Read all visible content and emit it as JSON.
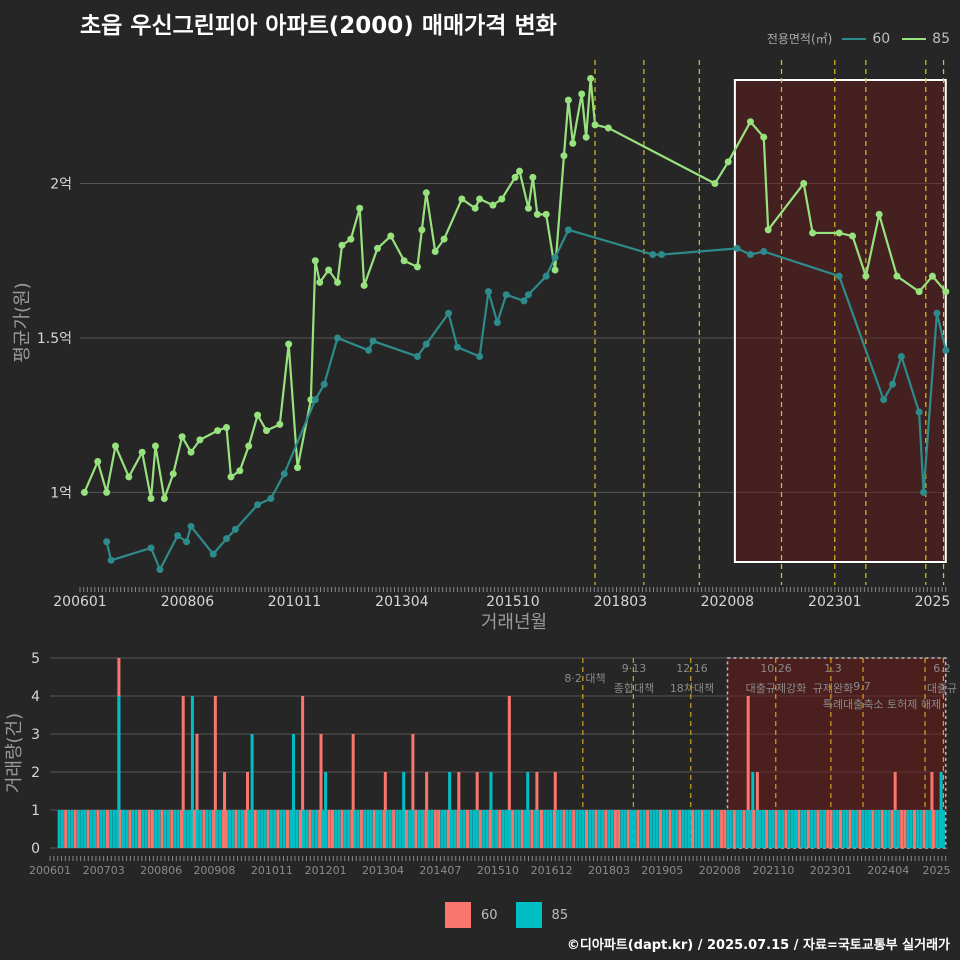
{
  "title": "초읍 우신그린피아 아파트(2000) 매매가격 변화",
  "legend": {
    "title": "전용면적(㎡)",
    "items": [
      {
        "label": "60",
        "color": "#2e8b8b"
      },
      {
        "label": "85",
        "color": "#98e27e"
      }
    ]
  },
  "volume_legend": [
    {
      "label": "60",
      "color": "#f8766d"
    },
    {
      "label": "85",
      "color": "#00bfc4"
    }
  ],
  "credit": "©디아파트(dapt.kr) / 2025.07.15 / 자료=국토교통부 실거래가",
  "chart_data": [
    {
      "type": "line",
      "xlabel": "거래년월",
      "ylabel": "평균가(원)",
      "x_ticks": [
        "200601",
        "200806",
        "201011",
        "201304",
        "201510",
        "201803",
        "202008",
        "202301",
        "2025"
      ],
      "y_ticks": [
        {
          "label": "1억",
          "value": 1.0
        },
        {
          "label": "1.5억",
          "value": 1.5
        },
        {
          "label": "2억",
          "value": 2.0
        }
      ],
      "ylim": [
        0.7,
        2.4
      ],
      "xlim": [
        2006.0,
        2025.55
      ],
      "grid": true,
      "highlight_range": [
        2020.75,
        2025.5
      ],
      "policy_lines": [
        2017.6,
        2018.7,
        2019.95,
        2021.8,
        2023.0,
        2023.7,
        2025.05,
        2025.45
      ],
      "series": [
        {
          "name": "85",
          "color": "#98e27e",
          "values": [
            [
              2006.1,
              1.0
            ],
            [
              2006.4,
              1.1
            ],
            [
              2006.6,
              1.0
            ],
            [
              2006.8,
              1.15
            ],
            [
              2007.1,
              1.05
            ],
            [
              2007.4,
              1.13
            ],
            [
              2007.6,
              0.98
            ],
            [
              2007.7,
              1.15
            ],
            [
              2007.9,
              0.98
            ],
            [
              2008.1,
              1.06
            ],
            [
              2008.3,
              1.18
            ],
            [
              2008.5,
              1.13
            ],
            [
              2008.7,
              1.17
            ],
            [
              2009.1,
              1.2
            ],
            [
              2009.3,
              1.21
            ],
            [
              2009.4,
              1.05
            ],
            [
              2009.6,
              1.07
            ],
            [
              2009.8,
              1.15
            ],
            [
              2010.0,
              1.25
            ],
            [
              2010.2,
              1.2
            ],
            [
              2010.5,
              1.22
            ],
            [
              2010.7,
              1.48
            ],
            [
              2010.9,
              1.08
            ],
            [
              2011.2,
              1.3
            ],
            [
              2011.3,
              1.75
            ],
            [
              2011.4,
              1.68
            ],
            [
              2011.6,
              1.72
            ],
            [
              2011.8,
              1.68
            ],
            [
              2011.9,
              1.8
            ],
            [
              2012.1,
              1.82
            ],
            [
              2012.3,
              1.92
            ],
            [
              2012.4,
              1.67
            ],
            [
              2012.7,
              1.79
            ],
            [
              2013.0,
              1.83
            ],
            [
              2013.3,
              1.75
            ],
            [
              2013.6,
              1.73
            ],
            [
              2013.7,
              1.85
            ],
            [
              2013.8,
              1.97
            ],
            [
              2014.0,
              1.78
            ],
            [
              2014.2,
              1.82
            ],
            [
              2014.6,
              1.95
            ],
            [
              2014.9,
              1.92
            ],
            [
              2015.0,
              1.95
            ],
            [
              2015.3,
              1.93
            ],
            [
              2015.5,
              1.95
            ],
            [
              2015.8,
              2.02
            ],
            [
              2015.9,
              2.04
            ],
            [
              2016.1,
              1.92
            ],
            [
              2016.2,
              2.02
            ],
            [
              2016.3,
              1.9
            ],
            [
              2016.5,
              1.9
            ],
            [
              2016.7,
              1.72
            ],
            [
              2016.9,
              2.09
            ],
            [
              2017.0,
              2.27
            ],
            [
              2017.1,
              2.13
            ],
            [
              2017.3,
              2.29
            ],
            [
              2017.4,
              2.15
            ],
            [
              2017.5,
              2.34
            ],
            [
              2017.6,
              2.19
            ],
            [
              2017.9,
              2.18
            ],
            [
              2020.3,
              2.0
            ],
            [
              2020.6,
              2.07
            ],
            [
              2021.1,
              2.2
            ],
            [
              2021.4,
              2.15
            ],
            [
              2021.5,
              1.85
            ],
            [
              2022.3,
              2.0
            ],
            [
              2022.5,
              1.84
            ],
            [
              2023.1,
              1.84
            ],
            [
              2023.4,
              1.83
            ],
            [
              2023.7,
              1.7
            ],
            [
              2024.0,
              1.9
            ],
            [
              2024.4,
              1.7
            ],
            [
              2024.9,
              1.65
            ],
            [
              2025.2,
              1.7
            ],
            [
              2025.5,
              1.65
            ]
          ]
        },
        {
          "name": "60",
          "color": "#2e8b8b",
          "values": [
            [
              2006.6,
              0.84
            ],
            [
              2006.7,
              0.78
            ],
            [
              2007.6,
              0.82
            ],
            [
              2007.8,
              0.75
            ],
            [
              2008.2,
              0.86
            ],
            [
              2008.4,
              0.84
            ],
            [
              2008.5,
              0.89
            ],
            [
              2009.0,
              0.8
            ],
            [
              2009.3,
              0.85
            ],
            [
              2009.5,
              0.88
            ],
            [
              2010.0,
              0.96
            ],
            [
              2010.3,
              0.98
            ],
            [
              2010.6,
              1.06
            ],
            [
              2011.3,
              1.3
            ],
            [
              2011.5,
              1.35
            ],
            [
              2011.8,
              1.5
            ],
            [
              2012.5,
              1.46
            ],
            [
              2012.6,
              1.49
            ],
            [
              2013.6,
              1.44
            ],
            [
              2013.8,
              1.48
            ],
            [
              2014.3,
              1.58
            ],
            [
              2014.5,
              1.47
            ],
            [
              2015.0,
              1.44
            ],
            [
              2015.2,
              1.65
            ],
            [
              2015.4,
              1.55
            ],
            [
              2015.6,
              1.64
            ],
            [
              2016.0,
              1.62
            ],
            [
              2016.1,
              1.64
            ],
            [
              2016.5,
              1.7
            ],
            [
              2016.7,
              1.76
            ],
            [
              2017.0,
              1.85
            ],
            [
              2018.9,
              1.77
            ],
            [
              2019.1,
              1.77
            ],
            [
              2020.8,
              1.79
            ],
            [
              2021.1,
              1.77
            ],
            [
              2021.4,
              1.78
            ],
            [
              2023.1,
              1.7
            ],
            [
              2024.1,
              1.3
            ],
            [
              2024.3,
              1.35
            ],
            [
              2024.5,
              1.44
            ],
            [
              2024.9,
              1.26
            ],
            [
              2025.0,
              1.0
            ],
            [
              2025.3,
              1.58
            ],
            [
              2025.5,
              1.46
            ]
          ]
        }
      ]
    },
    {
      "type": "bar",
      "ylabel": "거래량(건)",
      "ylim": [
        0,
        5
      ],
      "y_ticks": [
        "0",
        "1",
        "2",
        "3",
        "4",
        "5"
      ],
      "x_ticks": [
        "200601",
        "200703",
        "200806",
        "200908",
        "201011",
        "201201",
        "201304",
        "201407",
        "201510",
        "201612",
        "201803",
        "201905",
        "202008",
        "202110",
        "202301",
        "202404",
        "2025"
      ],
      "xlim": [
        2006.0,
        2025.55
      ],
      "highlight_range": [
        2020.75,
        2025.5
      ],
      "policy_lines": [
        2017.6,
        2018.7,
        2019.95,
        2021.8,
        2023.0,
        2023.7,
        2025.05,
        2025.45
      ],
      "annotations": [
        "8·2 대책",
        "9·13",
        "종합대책",
        "12·16",
        "18차대책",
        "10.26",
        "대출규제강화",
        "1.3",
        "규제완화",
        "9.7",
        "특례대출축소 토허제 해제",
        "6.2",
        "대출규"
      ],
      "series": [
        {
          "name": "60",
          "color": "#f8766d",
          "values": [
            [
              2007.5,
              5
            ],
            [
              2008.9,
              4
            ],
            [
              2009.6,
              4
            ],
            [
              2009.2,
              3
            ],
            [
              2009.8,
              2
            ],
            [
              2010.3,
              2
            ],
            [
              2011.5,
              4
            ],
            [
              2011.9,
              3
            ],
            [
              2012.6,
              3
            ],
            [
              2013.3,
              2
            ],
            [
              2013.9,
              3
            ],
            [
              2014.2,
              2
            ],
            [
              2014.9,
              2
            ],
            [
              2015.3,
              2
            ],
            [
              2016.0,
              4
            ],
            [
              2016.6,
              2
            ],
            [
              2017.0,
              2
            ],
            [
              2021.2,
              4
            ],
            [
              2021.4,
              2
            ],
            [
              2024.4,
              2
            ],
            [
              2025.2,
              2
            ]
          ]
        },
        {
          "name": "85",
          "color": "#00bfc4",
          "values": [
            [
              2007.5,
              4
            ],
            [
              2009.1,
              4
            ],
            [
              2010.4,
              3
            ],
            [
              2011.3,
              3
            ],
            [
              2012.0,
              2
            ],
            [
              2013.7,
              2
            ],
            [
              2014.7,
              2
            ],
            [
              2015.6,
              2
            ],
            [
              2016.4,
              2
            ],
            [
              2021.3,
              2
            ],
            [
              2025.4,
              2
            ]
          ]
        }
      ]
    }
  ]
}
